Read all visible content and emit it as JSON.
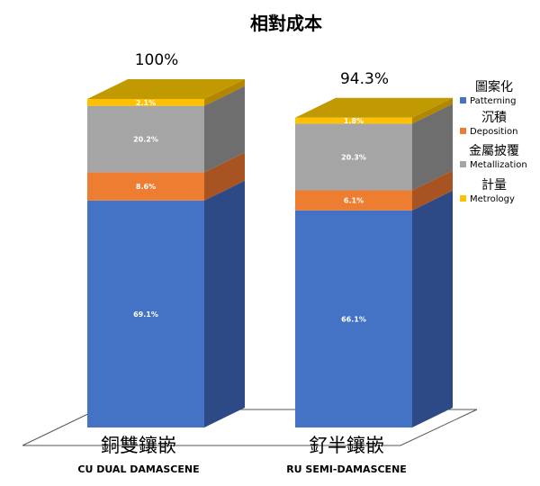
{
  "chart_data": {
    "type": "bar",
    "stacked": true,
    "three_d": true,
    "title": "相對成本",
    "categories": [
      {
        "zh": "銅雙鑲嵌",
        "en": "CU DUAL DAMASCENE",
        "total_label": "100%",
        "total": 100
      },
      {
        "zh": "釕半鑲嵌",
        "en": "RU SEMI-DAMASCENE",
        "total_label": "94.3%",
        "total": 94.3
      }
    ],
    "series": [
      {
        "name": "Patterning",
        "name_zh": "圖案化",
        "color": "#4472C4",
        "side_color": "#2E4A86",
        "values": [
          69.1,
          66.1
        ],
        "labels": [
          "69.1%",
          "66.1%"
        ]
      },
      {
        "name": "Deposition",
        "name_zh": "沉積",
        "color": "#ED7D31",
        "side_color": "#A85422",
        "values": [
          8.6,
          6.1
        ],
        "labels": [
          "8.6%",
          "6.1%"
        ]
      },
      {
        "name": "Metallization",
        "name_zh": "金屬披覆",
        "color": "#A5A5A5",
        "side_color": "#6E6E6E",
        "values": [
          20.2,
          20.3
        ],
        "labels": [
          "20.2%",
          "20.3%"
        ]
      },
      {
        "name": "Metrology",
        "name_zh": "計量",
        "color": "#FFC000",
        "side_color": "#B38600",
        "values": [
          2.1,
          1.8
        ],
        "labels": [
          "2.1%",
          "1.8%"
        ]
      }
    ],
    "top_color": "#C09A00",
    "legend": "right",
    "label_color": "#ffffff"
  }
}
